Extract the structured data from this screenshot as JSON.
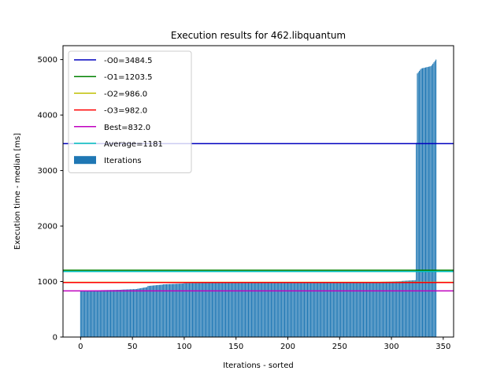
{
  "chart_data": {
    "type": "bar",
    "title": "Execution results for 462.libquantum",
    "xlabel": "Iterations - sorted",
    "ylabel": "Execution time - median [ms]",
    "xlim": [
      -17,
      360
    ],
    "ylim": [
      0,
      5250
    ],
    "xticks": [
      0,
      50,
      100,
      150,
      200,
      250,
      300,
      350
    ],
    "yticks": [
      0,
      1000,
      2000,
      3000,
      4000,
      5000
    ],
    "grid": false,
    "legend_position": "top-left",
    "bar_series": {
      "name": "Iterations",
      "color": "#1f77b4",
      "segments": [
        {
          "from": 0,
          "to": 5,
          "v0": 832,
          "v1": 836
        },
        {
          "from": 5,
          "to": 20,
          "v0": 836,
          "v1": 842
        },
        {
          "from": 20,
          "to": 40,
          "v0": 845,
          "v1": 852
        },
        {
          "from": 40,
          "to": 55,
          "v0": 855,
          "v1": 865
        },
        {
          "from": 55,
          "to": 65,
          "v0": 870,
          "v1": 900
        },
        {
          "from": 65,
          "to": 80,
          "v0": 920,
          "v1": 945
        },
        {
          "from": 80,
          "to": 100,
          "v0": 950,
          "v1": 965
        },
        {
          "from": 100,
          "to": 270,
          "v0": 970,
          "v1": 986
        },
        {
          "from": 270,
          "to": 290,
          "v0": 986,
          "v1": 990
        },
        {
          "from": 290,
          "to": 310,
          "v0": 995,
          "v1": 1005
        },
        {
          "from": 310,
          "to": 324,
          "v0": 1010,
          "v1": 1025
        },
        {
          "from": 324,
          "to": 325,
          "v0": 3500,
          "v1": 3500
        },
        {
          "from": 325,
          "to": 329,
          "v0": 4750,
          "v1": 4820
        },
        {
          "from": 329,
          "to": 339,
          "v0": 4840,
          "v1": 4880
        },
        {
          "from": 339,
          "to": 344,
          "v0": 4900,
          "v1": 5000
        }
      ]
    },
    "lines": [
      {
        "name": "-O0=3484.5",
        "value": 3484.5,
        "color": "#0000bf"
      },
      {
        "name": "-O1=1203.5",
        "value": 1203.5,
        "color": "#008000"
      },
      {
        "name": "-O2=986.0",
        "value": 986.0,
        "color": "#bfbf00"
      },
      {
        "name": "-O3=982.0",
        "value": 982.0,
        "color": "#ff0000"
      },
      {
        "name": "Best=832.0",
        "value": 832.0,
        "color": "#bf00bf"
      },
      {
        "name": "Average=1181",
        "value": 1181,
        "color": "#00bfbf"
      }
    ]
  }
}
